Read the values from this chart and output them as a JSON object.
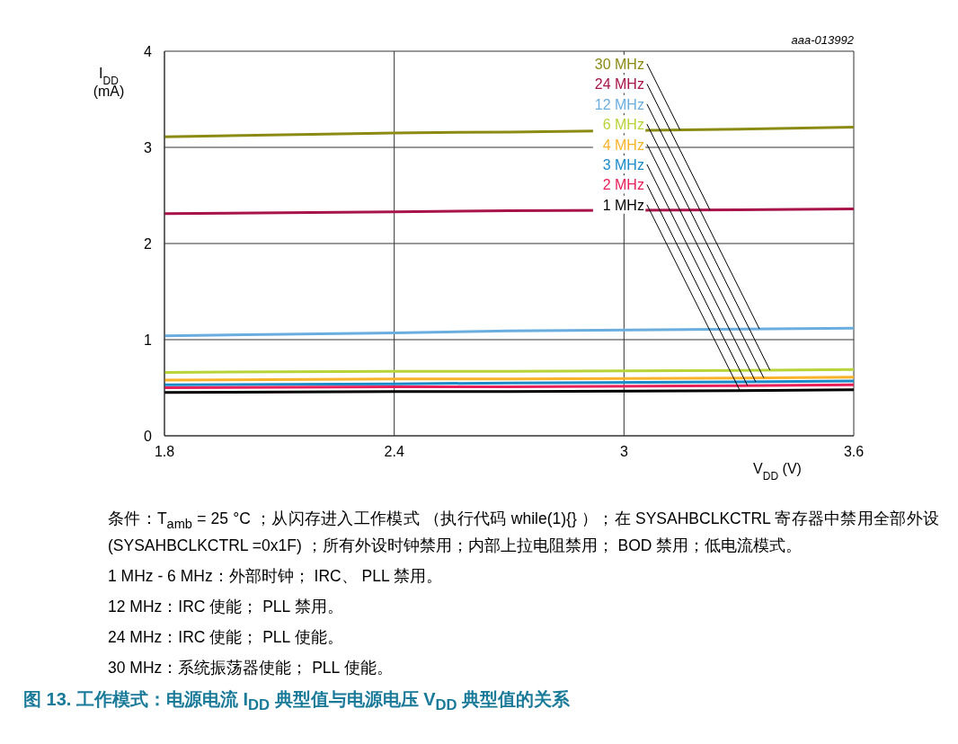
{
  "chart_data": {
    "type": "line",
    "title": "图 13.   工作模式：电源电流 I$_{DD}$ 典型值与电源电压 V$_{DD}$ 典型值的关系",
    "xlabel": "V$_{DD}$ (V)",
    "ylabel": "I$_{DD}$ (mA)",
    "x": [
      1.8,
      2.4,
      2.7,
      3.3,
      3.6
    ],
    "series": [
      {
        "name": "30 MHz",
        "color": "#8b8b14",
        "values": [
          3.11,
          3.15,
          3.16,
          3.19,
          3.21
        ]
      },
      {
        "name": "24 MHz",
        "color": "#a8144a",
        "values": [
          2.31,
          2.33,
          2.34,
          2.35,
          2.36
        ]
      },
      {
        "name": "12 MHz",
        "color": "#6aaee0",
        "values": [
          1.04,
          1.07,
          1.09,
          1.11,
          1.12
        ]
      },
      {
        "name": "6 MHz",
        "color": "#b8d438",
        "values": [
          0.66,
          0.67,
          0.67,
          0.68,
          0.69
        ]
      },
      {
        "name": "4 MHz",
        "color": "#f9b32a",
        "values": [
          0.58,
          0.59,
          0.59,
          0.6,
          0.61
        ]
      },
      {
        "name": "3 MHz",
        "color": "#1a8ac8",
        "values": [
          0.53,
          0.54,
          0.55,
          0.56,
          0.57
        ]
      },
      {
        "name": "2 MHz",
        "color": "#e8205a",
        "values": [
          0.5,
          0.51,
          0.51,
          0.52,
          0.53
        ]
      },
      {
        "name": "1 MHz",
        "color": "#000000",
        "values": [
          0.45,
          0.46,
          0.46,
          0.47,
          0.48
        ]
      }
    ],
    "xlim": [
      1.8,
      3.6
    ],
    "xticks": [
      1.8,
      2.4,
      3,
      3.6
    ],
    "ylim": [
      0,
      4
    ],
    "yticks": [
      0,
      1,
      2,
      3,
      4
    ],
    "grid": true,
    "annotations": [
      "aaa-013992",
      "条件：T$_{amb}$ = 25 °C ；从闪存进入工作模式 （执行代码 while(1){} ）；在 SYSAHBCLKCTRL 寄存器中禁用全部外设 (SYSAHBCLKCTRL =0x1F) ；所有外设时钟禁用；内部上拉电阻禁用； BOD 禁用；低电流模式。",
      "1 MHz - 6 MHz：外部时钟； IRC、 PLL 禁用。",
      "12 MHz：IRC 使能； PLL 禁用。",
      "24 MHz：IRC 使能； PLL 使能。",
      "30 MHz：系统振荡器使能； PLL 使能。"
    ]
  }
}
